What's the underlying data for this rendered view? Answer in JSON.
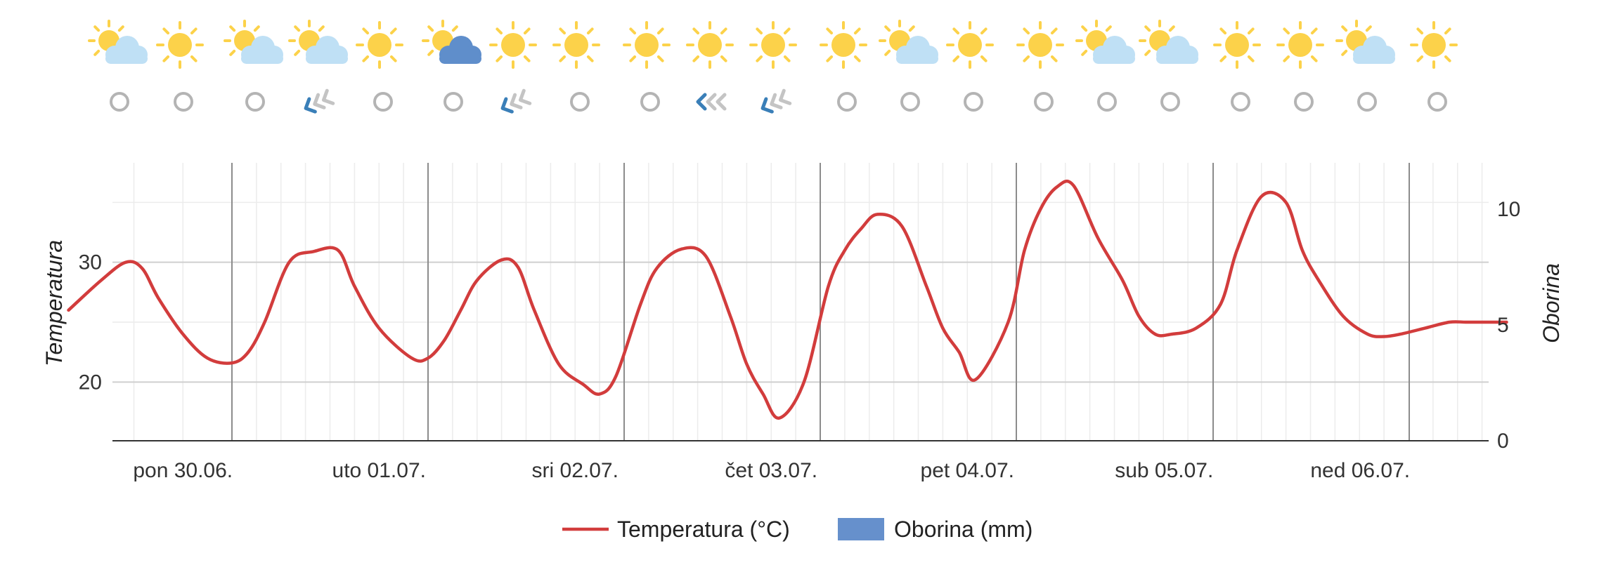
{
  "chart_data": {
    "type": "line",
    "title": "",
    "xlabel": "",
    "ylabel": "Temperatura",
    "y2label": "Oborina",
    "days": [
      "pon 30.06.",
      "uto 01.07.",
      "sri 02.07.",
      "čet 03.07.",
      "pet 04.07.",
      "sub 05.07.",
      "ned 06.07."
    ],
    "ylim": [
      15.1,
      38.3
    ],
    "yticks": [
      20,
      30
    ],
    "y2lim": [
      0,
      12
    ],
    "y2ticks": [
      0,
      5,
      10
    ],
    "grid": true,
    "legend_position": "bottom-center",
    "series": [
      {
        "name": "Temperatura (°C)",
        "color": "#d23c3c",
        "x_hours": [
          -20,
          -16,
          -13,
          -11,
          -9,
          -6,
          -3,
          0,
          2,
          4,
          7,
          10,
          13,
          15,
          18,
          22,
          24,
          26,
          28,
          30,
          33,
          35,
          37,
          40,
          43,
          45,
          47,
          50,
          52,
          55,
          58,
          61,
          63,
          65,
          67,
          70,
          73,
          75,
          77,
          79,
          82,
          85,
          87,
          89,
          91,
          95,
          97,
          99,
          101,
          103,
          106,
          109,
          111,
          113,
          115,
          118,
          121,
          123,
          126,
          129,
          131,
          133,
          136,
          139,
          141,
          143,
          146,
          149,
          151,
          153,
          156
        ],
        "y": [
          26,
          28.5,
          30,
          29.5,
          27,
          24,
          22,
          21.6,
          22.5,
          25,
          30,
          30.9,
          31,
          28,
          24.5,
          22,
          22,
          23.5,
          26,
          28.5,
          30.2,
          29.6,
          26,
          21.5,
          19.8,
          19,
          20.5,
          26.5,
          29.5,
          31.1,
          30.5,
          25.5,
          21.5,
          19,
          17,
          20,
          28,
          31,
          32.8,
          34,
          33,
          28,
          24.5,
          22.5,
          20.2,
          25,
          31,
          34.5,
          36.3,
          36.4,
          32,
          28.5,
          25.5,
          24,
          24,
          24.5,
          26.5,
          31,
          35.5,
          35,
          31,
          28.5,
          25.5,
          24,
          23.8,
          24,
          24.5,
          25,
          25,
          25,
          25
        ]
      },
      {
        "name": "Oborina (mm)",
        "color": "#6690cc",
        "values": []
      }
    ]
  },
  "forecast": {
    "icons": [
      "partly-cloudy-icon",
      "sun-icon",
      "partly-cloudy-icon",
      "partly-cloudy-icon",
      "sun-icon",
      "sun-dark-cloud-icon",
      "sun-icon",
      "sun-icon",
      "sun-icon",
      "sun-icon",
      "sun-icon",
      "sun-icon",
      "partly-cloudy-icon",
      "sun-icon",
      "sun-icon",
      "partly-cloudy-icon",
      "partly-cloudy-icon",
      "sun-icon",
      "sun-icon",
      "partly-cloudy-icon",
      "sun-icon"
    ],
    "wind": [
      {
        "icon": "calm-circle-icon"
      },
      {
        "icon": "calm-circle-icon"
      },
      {
        "icon": "calm-circle-icon"
      },
      {
        "icon": "wind-arrow-icon",
        "direction": "southwest"
      },
      {
        "icon": "calm-circle-icon"
      },
      {
        "icon": "calm-circle-icon"
      },
      {
        "icon": "wind-arrow-icon",
        "direction": "southwest"
      },
      {
        "icon": "calm-circle-icon"
      },
      {
        "icon": "calm-circle-icon"
      },
      {
        "icon": "wind-arrow-icon",
        "direction": "west"
      },
      {
        "icon": "wind-arrow-icon",
        "direction": "southwest"
      },
      {
        "icon": "calm-circle-icon"
      },
      {
        "icon": "calm-circle-icon"
      },
      {
        "icon": "calm-circle-icon"
      },
      {
        "icon": "calm-circle-icon"
      },
      {
        "icon": "calm-circle-icon"
      },
      {
        "icon": "calm-circle-icon"
      },
      {
        "icon": "calm-circle-icon"
      },
      {
        "icon": "calm-circle-icon"
      },
      {
        "icon": "calm-circle-icon"
      },
      {
        "icon": "calm-circle-icon"
      }
    ]
  },
  "colors": {
    "sun": "#fcd24a",
    "cloud": "#bfe0f5",
    "dark_cloud": "#5f8ecb",
    "wind_dark": "#3a7fb8",
    "wind_light": "#c4c4c4",
    "calm": "#b4b4b4"
  }
}
